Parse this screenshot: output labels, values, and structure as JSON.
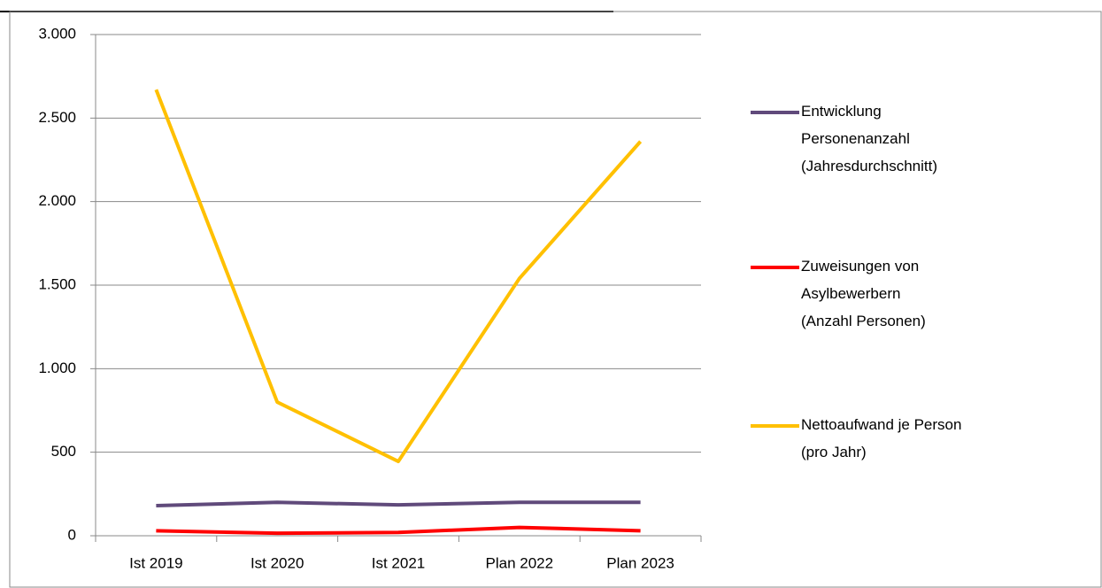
{
  "chart_data": {
    "type": "line",
    "categories": [
      "Ist 2019",
      "Ist 2020",
      "Ist 2021",
      "Plan 2022",
      "Plan 2023"
    ],
    "series": [
      {
        "name": "Entwicklung Personenanzahl (Jahresdurchschnitt)",
        "color": "#604a7b",
        "values": [
          180,
          200,
          185,
          200,
          200
        ]
      },
      {
        "name": "Zuweisungen von Asylbewerbern (Anzahl Personen)",
        "color": "#ff0000",
        "values": [
          30,
          15,
          20,
          50,
          30
        ]
      },
      {
        "name": "Nettoaufwand je Person (pro Jahr)",
        "color": "#ffc000",
        "values": [
          2670,
          800,
          445,
          1540,
          2360
        ]
      }
    ],
    "ylim": [
      0,
      3000
    ],
    "yticks": [
      0,
      500,
      {
        "value": 1000,
        "label": "1.000"
      },
      {
        "value": 1500,
        "label": "1.500"
      },
      {
        "value": 2000,
        "label": "2.000"
      },
      {
        "value": 2500,
        "label": "2.500"
      },
      {
        "value": 3000,
        "label": "3.000"
      }
    ],
    "grid": true,
    "legend": "right"
  }
}
